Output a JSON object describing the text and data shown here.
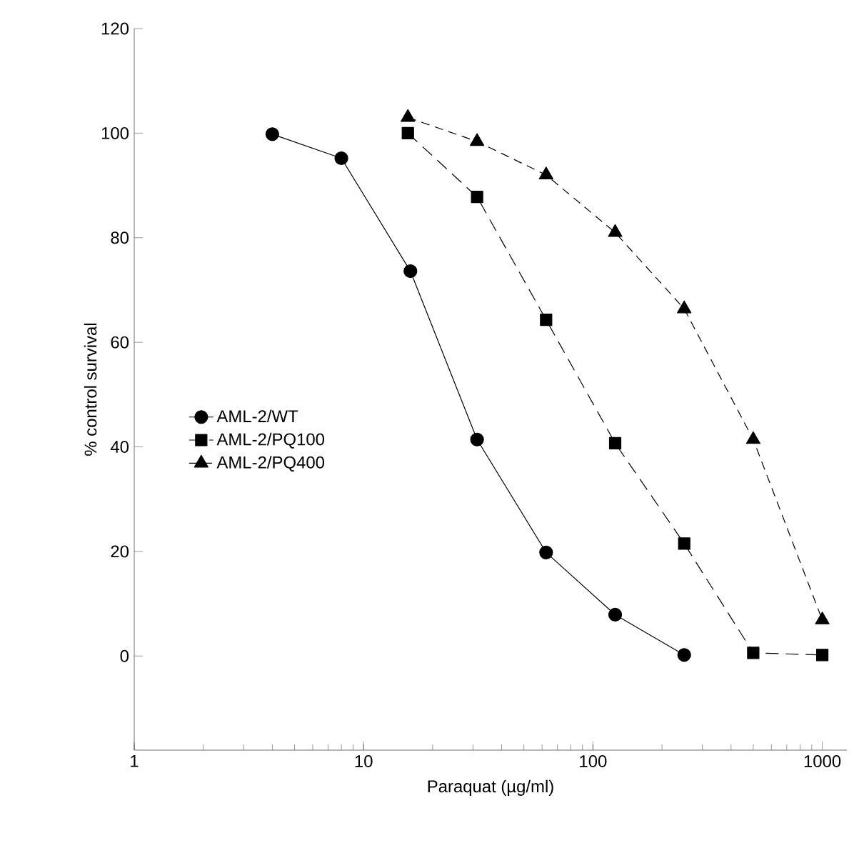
{
  "chart_data": {
    "type": "line",
    "xlabel": "Paraquat (µg/ml)",
    "ylabel": "% control survival",
    "log": "x",
    "xlim": [
      1,
      1280
    ],
    "xticks": [
      1,
      10,
      100,
      1000
    ],
    "ylim": [
      -18,
      120
    ],
    "yticks": [
      0,
      20,
      40,
      60,
      80,
      100,
      120
    ],
    "legend": "left",
    "grid": false,
    "series": [
      {
        "name": "AML-2/WT",
        "color": "#000000",
        "marker": "circle",
        "line_style": "solid",
        "x": [
          4,
          8,
          16,
          31.25,
          62.5,
          125,
          250
        ],
        "values": [
          99.8,
          95.2,
          73.6,
          41.4,
          19.8,
          7.9,
          0.2
        ]
      },
      {
        "name": "AML-2/PQ100",
        "color": "#000000",
        "marker": "square",
        "line_style": "dashed",
        "x": [
          15.6,
          31.25,
          62.5,
          125,
          250,
          500,
          1000
        ],
        "values": [
          100,
          87.8,
          64.3,
          40.7,
          21.5,
          0.6,
          0.2
        ]
      },
      {
        "name": "AML-2/PQ400",
        "color": "#000000",
        "marker": "triangle",
        "line_style": "dashed",
        "x": [
          15.6,
          31.25,
          62.5,
          125,
          250,
          500,
          1000
        ],
        "values": [
          103,
          98.4,
          92,
          81,
          66.4,
          41.4,
          6.9
        ]
      }
    ]
  }
}
